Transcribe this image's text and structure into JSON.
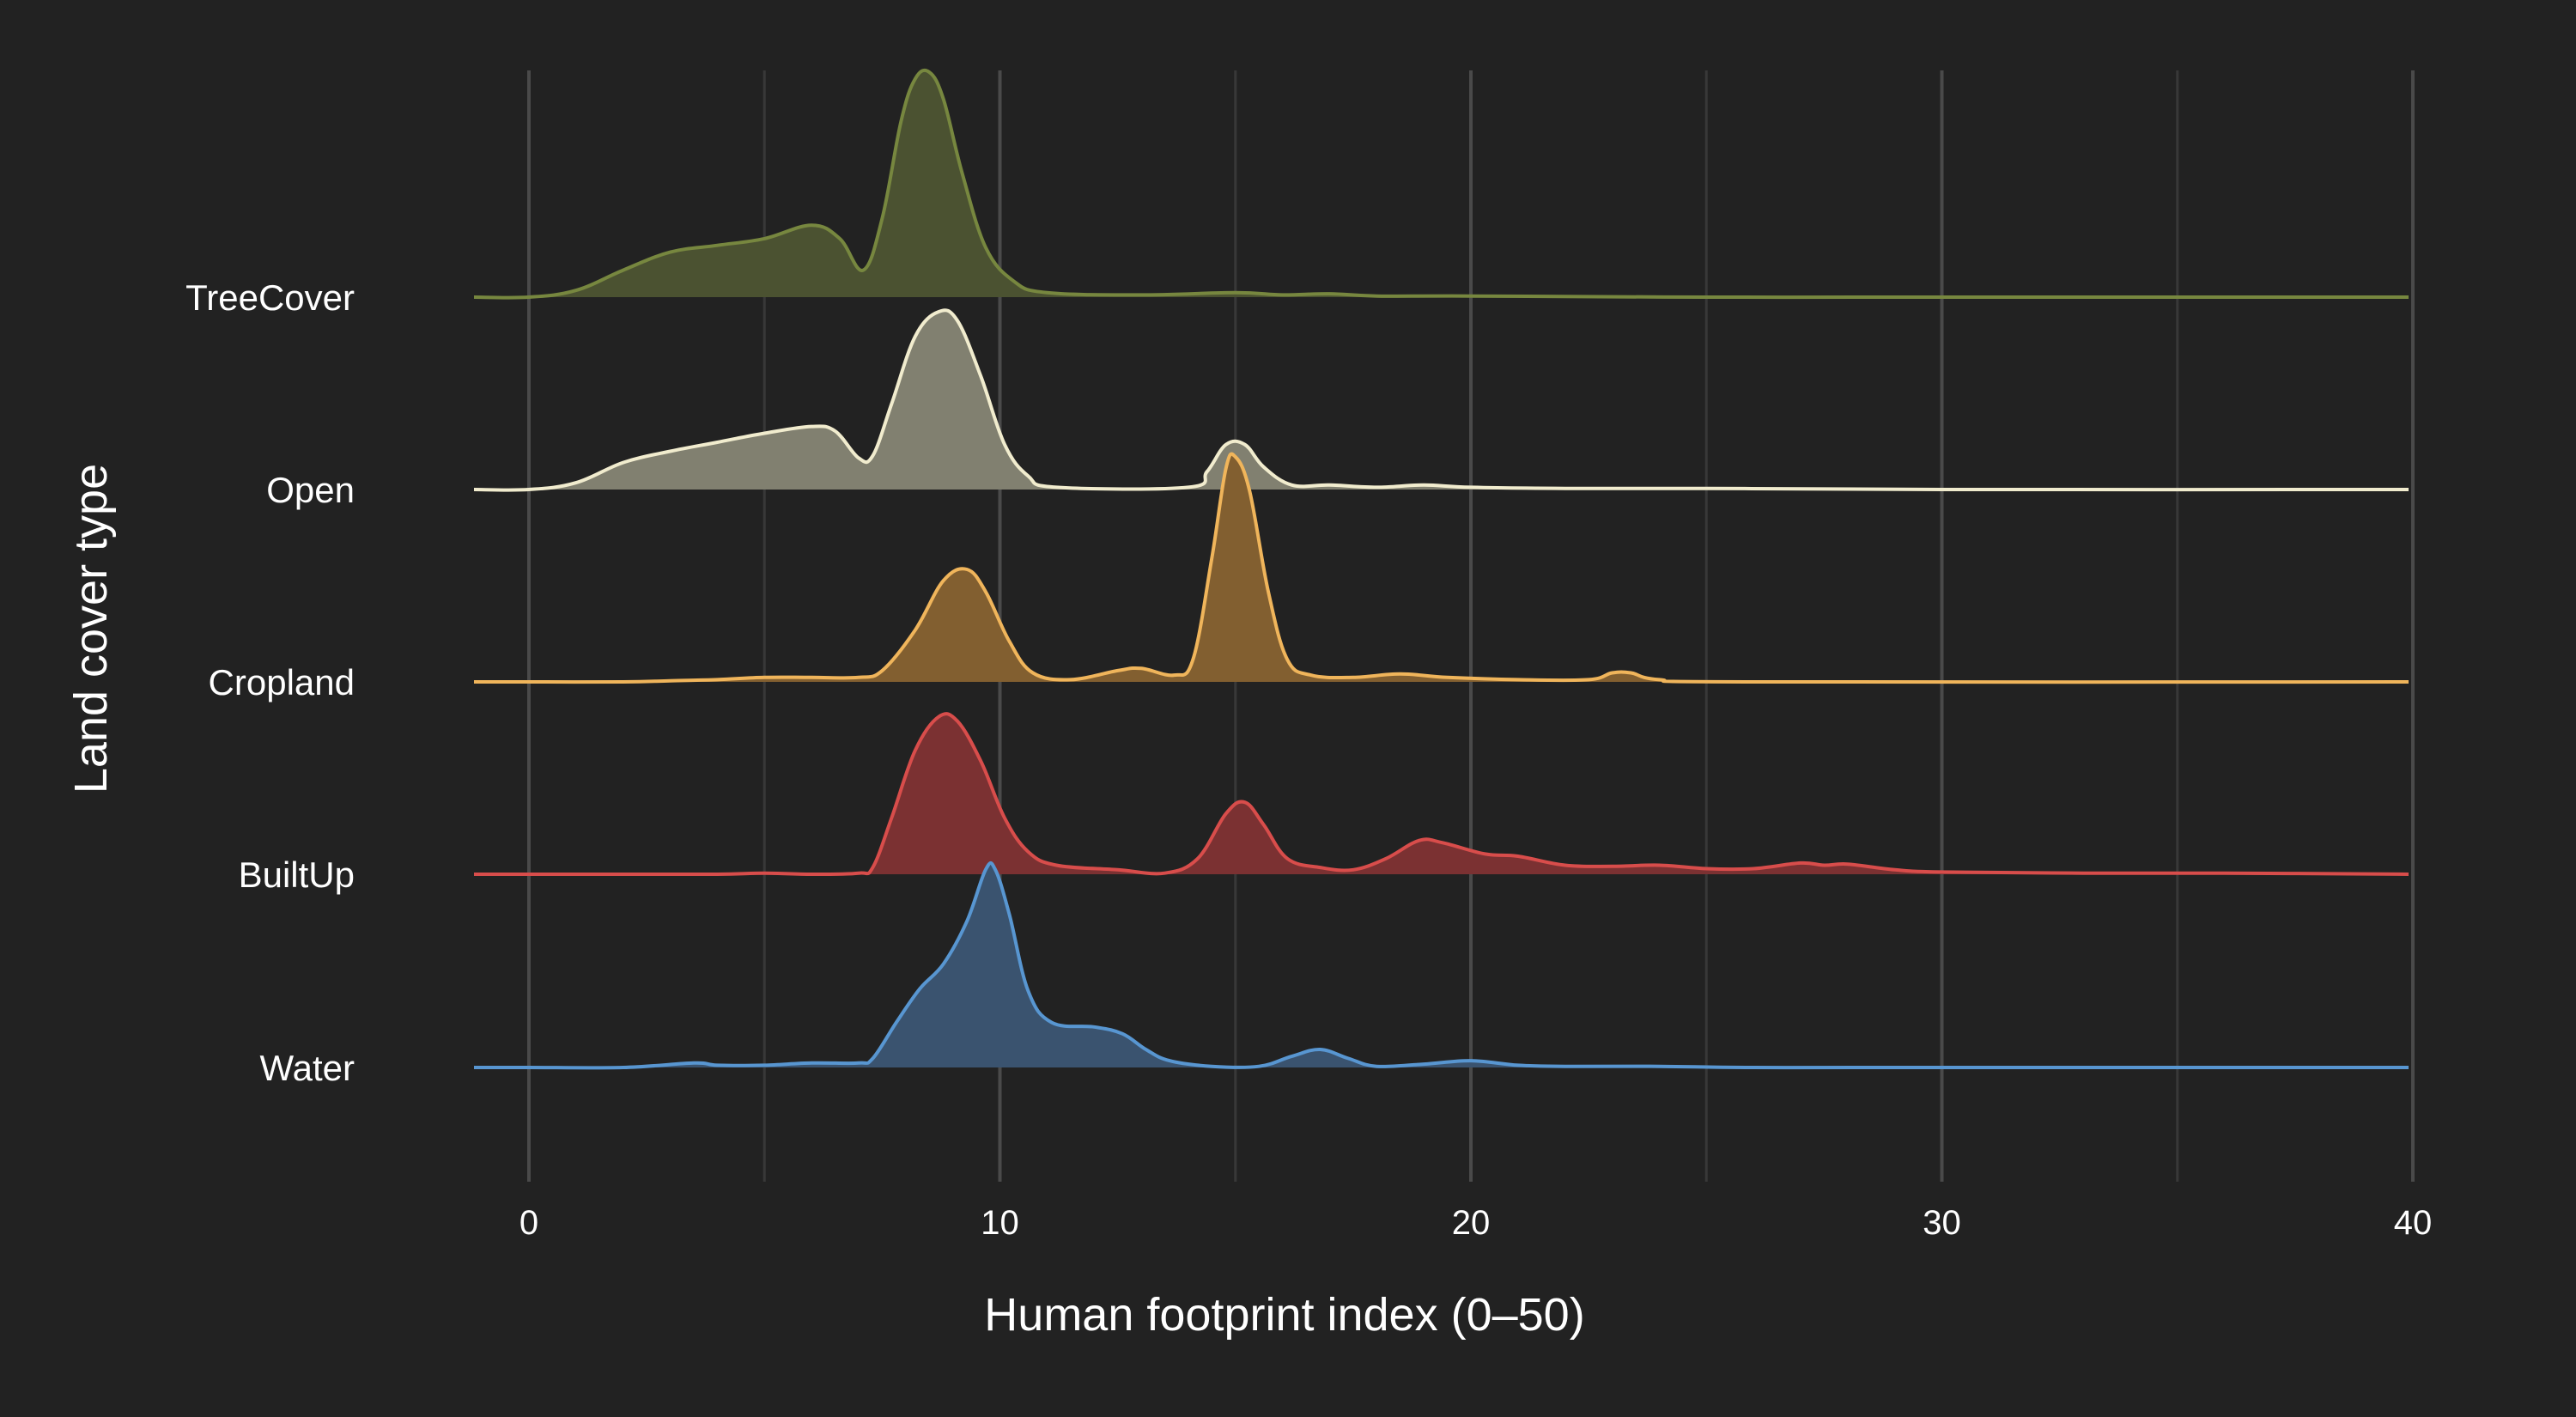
{
  "chart_data": {
    "type": "ridgeline",
    "xlabel": "Human footprint index (0–50)",
    "ylabel": "Land cover type",
    "xlim": [
      -1.2,
      40
    ],
    "x_ticks": [
      0,
      10,
      20,
      30,
      40
    ],
    "x_tick_labels": [
      "0",
      "10",
      "20",
      "30",
      "40"
    ],
    "minor_gridlines": [
      5,
      15,
      25,
      35
    ],
    "grid": true,
    "background": "#222222",
    "series": [
      {
        "name": "TreeCover",
        "color": "#77873f",
        "fill": "#4b5231",
        "curve": [
          [
            -1.2,
            0
          ],
          [
            0,
            0
          ],
          [
            1,
            0.03
          ],
          [
            2,
            0.12
          ],
          [
            3,
            0.2
          ],
          [
            4,
            0.23
          ],
          [
            5,
            0.26
          ],
          [
            6,
            0.32
          ],
          [
            6.6,
            0.26
          ],
          [
            7.1,
            0.12
          ],
          [
            7.5,
            0.35
          ],
          [
            7.9,
            0.78
          ],
          [
            8.2,
            0.97
          ],
          [
            8.5,
            1.0
          ],
          [
            8.8,
            0.88
          ],
          [
            9.2,
            0.55
          ],
          [
            9.7,
            0.22
          ],
          [
            10.3,
            0.07
          ],
          [
            11,
            0.02
          ],
          [
            13,
            0.01
          ],
          [
            15,
            0.02
          ],
          [
            16,
            0.01
          ],
          [
            17,
            0.015
          ],
          [
            18,
            0.005
          ],
          [
            20,
            0.005
          ],
          [
            25,
            0
          ],
          [
            30,
            0
          ],
          [
            40,
            0
          ]
        ]
      },
      {
        "name": "Open",
        "color": "#f1ecce",
        "fill": "#818070",
        "curve": [
          [
            -1.2,
            0
          ],
          [
            0,
            0
          ],
          [
            1,
            0.03
          ],
          [
            2,
            0.12
          ],
          [
            3,
            0.17
          ],
          [
            4,
            0.21
          ],
          [
            5,
            0.25
          ],
          [
            6,
            0.28
          ],
          [
            6.5,
            0.26
          ],
          [
            7,
            0.14
          ],
          [
            7.3,
            0.15
          ],
          [
            7.7,
            0.38
          ],
          [
            8.2,
            0.68
          ],
          [
            8.7,
            0.79
          ],
          [
            9.1,
            0.75
          ],
          [
            9.6,
            0.5
          ],
          [
            10.1,
            0.2
          ],
          [
            10.6,
            0.06
          ],
          [
            11.2,
            0.01
          ],
          [
            14,
            0.01
          ],
          [
            14.4,
            0.08
          ],
          [
            14.8,
            0.2
          ],
          [
            15.2,
            0.2
          ],
          [
            15.6,
            0.1
          ],
          [
            16.2,
            0.02
          ],
          [
            17,
            0.02
          ],
          [
            18,
            0.01
          ],
          [
            19,
            0.02
          ],
          [
            20,
            0.01
          ],
          [
            22,
            0.005
          ],
          [
            25,
            0.005
          ],
          [
            30,
            0
          ],
          [
            40,
            0
          ]
        ]
      },
      {
        "name": "Cropland",
        "color": "#f0b55b",
        "fill": "#825f30",
        "curve": [
          [
            -1.2,
            0
          ],
          [
            0,
            0
          ],
          [
            2,
            0
          ],
          [
            3,
            0.005
          ],
          [
            4,
            0.01
          ],
          [
            5,
            0.02
          ],
          [
            6,
            0.02
          ],
          [
            7,
            0.02
          ],
          [
            7.5,
            0.05
          ],
          [
            8.2,
            0.23
          ],
          [
            8.8,
            0.45
          ],
          [
            9.3,
            0.5
          ],
          [
            9.7,
            0.4
          ],
          [
            10.2,
            0.18
          ],
          [
            10.7,
            0.04
          ],
          [
            11.5,
            0.01
          ],
          [
            12.5,
            0.05
          ],
          [
            13,
            0.06
          ],
          [
            13.7,
            0.03
          ],
          [
            14.1,
            0.1
          ],
          [
            14.5,
            0.55
          ],
          [
            14.8,
            0.95
          ],
          [
            15,
            1.0
          ],
          [
            15.3,
            0.85
          ],
          [
            15.7,
            0.4
          ],
          [
            16.1,
            0.1
          ],
          [
            16.6,
            0.03
          ],
          [
            17.5,
            0.02
          ],
          [
            18.5,
            0.035
          ],
          [
            19.5,
            0.02
          ],
          [
            21,
            0.01
          ],
          [
            22.5,
            0.01
          ],
          [
            23,
            0.04
          ],
          [
            23.4,
            0.04
          ],
          [
            24,
            0.01
          ],
          [
            26,
            0
          ],
          [
            40,
            0
          ]
        ]
      },
      {
        "name": "BuiltUp",
        "color": "#d84d4b",
        "fill": "#7b3132",
        "curve": [
          [
            -1.2,
            0
          ],
          [
            0,
            0
          ],
          [
            2,
            0
          ],
          [
            4,
            0
          ],
          [
            5,
            0.005
          ],
          [
            6,
            0
          ],
          [
            7,
            0.005
          ],
          [
            7.3,
            0.03
          ],
          [
            7.7,
            0.25
          ],
          [
            8.2,
            0.55
          ],
          [
            8.7,
            0.7
          ],
          [
            9.1,
            0.68
          ],
          [
            9.6,
            0.5
          ],
          [
            10.1,
            0.25
          ],
          [
            10.6,
            0.1
          ],
          [
            11.2,
            0.04
          ],
          [
            12.5,
            0.02
          ],
          [
            13.5,
            0.005
          ],
          [
            14.2,
            0.07
          ],
          [
            14.8,
            0.27
          ],
          [
            15.2,
            0.32
          ],
          [
            15.6,
            0.22
          ],
          [
            16.1,
            0.07
          ],
          [
            16.8,
            0.03
          ],
          [
            17.5,
            0.02
          ],
          [
            18.2,
            0.07
          ],
          [
            18.9,
            0.15
          ],
          [
            19.4,
            0.14
          ],
          [
            20.3,
            0.09
          ],
          [
            21,
            0.08
          ],
          [
            22,
            0.04
          ],
          [
            23,
            0.035
          ],
          [
            24,
            0.04
          ],
          [
            25,
            0.025
          ],
          [
            26,
            0.025
          ],
          [
            27,
            0.05
          ],
          [
            27.5,
            0.04
          ],
          [
            28,
            0.045
          ],
          [
            29,
            0.02
          ],
          [
            30,
            0.01
          ],
          [
            33,
            0.005
          ],
          [
            36,
            0.005
          ],
          [
            40,
            0
          ]
        ]
      },
      {
        "name": "Water",
        "color": "#5896d1",
        "fill": "#3a536f",
        "curve": [
          [
            -1.2,
            0
          ],
          [
            0,
            0
          ],
          [
            2,
            0
          ],
          [
            3.5,
            0.02
          ],
          [
            4,
            0.01
          ],
          [
            5,
            0.01
          ],
          [
            6,
            0.02
          ],
          [
            7,
            0.02
          ],
          [
            7.3,
            0.04
          ],
          [
            7.8,
            0.2
          ],
          [
            8.3,
            0.35
          ],
          [
            8.8,
            0.46
          ],
          [
            9.3,
            0.65
          ],
          [
            9.7,
            0.88
          ],
          [
            9.9,
            0.88
          ],
          [
            10.2,
            0.68
          ],
          [
            10.6,
            0.34
          ],
          [
            11.1,
            0.2
          ],
          [
            12,
            0.18
          ],
          [
            12.6,
            0.15
          ],
          [
            13.1,
            0.08
          ],
          [
            13.6,
            0.03
          ],
          [
            14.5,
            0.005
          ],
          [
            15.5,
            0.005
          ],
          [
            16.2,
            0.05
          ],
          [
            16.8,
            0.08
          ],
          [
            17.4,
            0.04
          ],
          [
            18,
            0.005
          ],
          [
            19,
            0.015
          ],
          [
            20,
            0.03
          ],
          [
            21,
            0.01
          ],
          [
            22,
            0.005
          ],
          [
            24,
            0.005
          ],
          [
            26,
            0
          ],
          [
            30,
            0
          ],
          [
            40,
            0
          ]
        ]
      }
    ]
  }
}
